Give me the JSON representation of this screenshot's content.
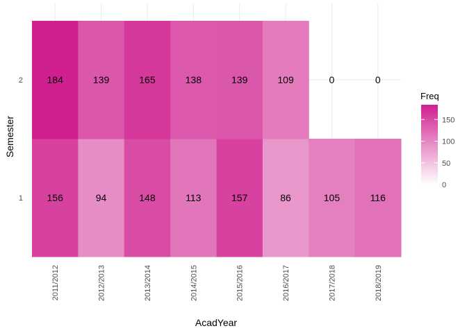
{
  "chart_data": {
    "type": "heatmap",
    "xlabel": "AcadYear",
    "ylabel": "Semester",
    "x_categories": [
      "2011/2012",
      "2012/2013",
      "2013/2014",
      "2014/2015",
      "2015/2016",
      "2016/2017",
      "2017/2018",
      "2018/2019"
    ],
    "y_categories": [
      "1",
      "2"
    ],
    "values": {
      "1": [
        156,
        94,
        148,
        113,
        157,
        86,
        105,
        116
      ],
      "2": [
        184,
        139,
        165,
        138,
        139,
        109,
        0,
        0
      ]
    },
    "legend": {
      "title": "Freq",
      "ticks": [
        0,
        50,
        100,
        150
      ],
      "range": [
        0,
        184
      ],
      "placement": "right"
    },
    "colors": {
      "low": "#ffffff",
      "high": "#d02090"
    },
    "grid": true
  }
}
